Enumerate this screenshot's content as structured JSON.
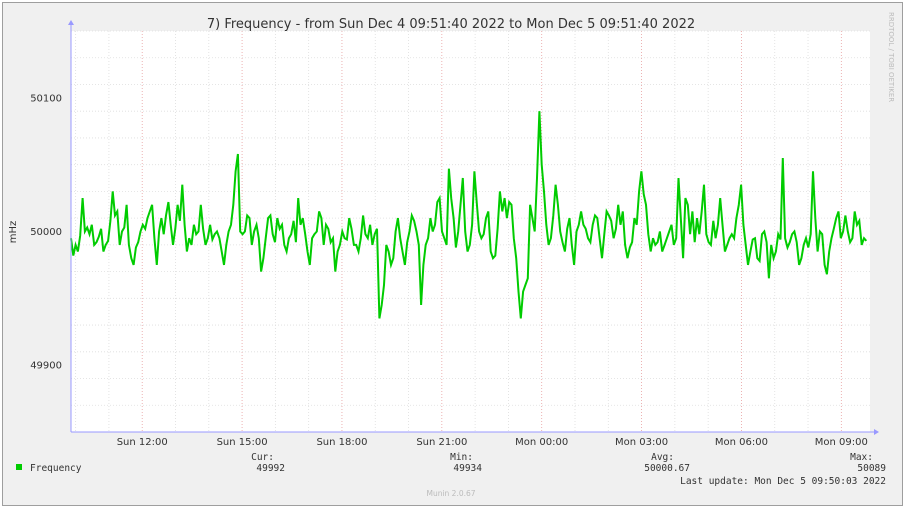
{
  "chart_data": {
    "type": "line",
    "title": "7) Frequency - from Sun Dec  4 09:51:40 2022 to Mon Dec  5 09:51:40 2022",
    "ylabel": "mHz",
    "xlabel": "",
    "side_label": "RRDTOOL / TOBI OETIKER",
    "footer": "Munin 2.0.67",
    "ylim": [
      49850,
      50150
    ],
    "y_ticks": [
      49900,
      50000,
      50100
    ],
    "x_ticks": [
      "Sun 12:00",
      "Sun 15:00",
      "Sun 18:00",
      "Sun 21:00",
      "Mon 00:00",
      "Mon 03:00",
      "Mon 06:00",
      "Mon 09:00"
    ],
    "x_range_hours": [
      "Sun Dec 4 09:51:40",
      "Mon Dec 5 09:51:40"
    ],
    "grid": true,
    "legend_position": "bottom-left",
    "colors": {
      "series": "#00cc00",
      "major_grid": "#e8a0a0",
      "minor_grid": "#dddddd",
      "axis": "#9999ff",
      "background": "#f0f0f0"
    },
    "series": [
      {
        "name": "Frequency",
        "start_hour": 9.86,
        "end_hour": 33.75,
        "values": [
          49995,
          49982,
          49990,
          49985,
          49997,
          50025,
          50000,
          50003,
          49998,
          50005,
          49990,
          49992,
          49996,
          50002,
          49985,
          49990,
          49993,
          50008,
          50030,
          50012,
          50015,
          49990,
          50000,
          50003,
          50020,
          49990,
          49980,
          49975,
          49988,
          49992,
          50000,
          50005,
          50002,
          50010,
          50015,
          50020,
          49995,
          49975,
          50000,
          50010,
          49998,
          50012,
          50022,
          50005,
          49990,
          50002,
          50020,
          50008,
          50035,
          50005,
          49985,
          49995,
          49990,
          50005,
          49998,
          50000,
          50020,
          50002,
          49990,
          49995,
          50005,
          49994,
          49998,
          50000,
          49995,
          49985,
          49975,
          49990,
          50000,
          50005,
          50020,
          50045,
          50058,
          50000,
          49998,
          50000,
          50012,
          50010,
          49990,
          50000,
          50005,
          49995,
          49970,
          49980,
          49995,
          50010,
          50012,
          49998,
          49992,
          50010,
          50002,
          50005,
          49990,
          49985,
          49995,
          49998,
          50008,
          49992,
          50025,
          50005,
          50010,
          49998,
          49985,
          49975,
          49995,
          49998,
          50000,
          50015,
          50010,
          49990,
          50005,
          50002,
          49992,
          49995,
          49970,
          49985,
          49990,
          50000,
          49995,
          49994,
          50010,
          50002,
          49990,
          49990,
          49985,
          49995,
          50012,
          49998,
          49995,
          50005,
          49990,
          49998,
          50002,
          49935,
          49945,
          49960,
          49990,
          49985,
          49975,
          49980,
          50000,
          50010,
          49995,
          49985,
          49975,
          49992,
          50000,
          50012,
          50008,
          50000,
          49990,
          49945,
          49975,
          49990,
          49995,
          50010,
          50000,
          50005,
          50022,
          50025,
          50000,
          49995,
          49990,
          50047,
          50025,
          50010,
          49988,
          50000,
          50020,
          50040,
          50000,
          49985,
          49990,
          50005,
          50045,
          50022,
          50000,
          49995,
          49998,
          50010,
          50015,
          49985,
          49980,
          49982,
          50002,
          50030,
          50015,
          50025,
          50010,
          50022,
          50020,
          49995,
          49980,
          49955,
          49935,
          49955,
          49960,
          49965,
          50020,
          50010,
          50000,
          50040,
          50090,
          50050,
          50030,
          50005,
          49990,
          49995,
          50012,
          50035,
          50020,
          50000,
          49992,
          49985,
          50002,
          50010,
          49990,
          49975,
          50000,
          50005,
          50015,
          50005,
          50002,
          49995,
          49992,
          50005,
          50012,
          50010,
          49995,
          49980,
          49998,
          50015,
          50012,
          50008,
          49995,
          50002,
          50020,
          50005,
          50015,
          49990,
          49980,
          49988,
          49992,
          50010,
          50005,
          50030,
          50045,
          50028,
          50020,
          49998,
          49985,
          49995,
          49990,
          49992,
          50000,
          49985,
          49990,
          49995,
          50000,
          50005,
          49990,
          49995,
          50040,
          50010,
          49980,
          50025,
          50020,
          49998,
          50015,
          49992,
          50010,
          49998,
          50015,
          50035,
          49998,
          49992,
          49990,
          50008,
          49995,
          50005,
          50025,
          50005,
          49985,
          49990,
          49995,
          49998,
          49995,
          50010,
          50020,
          50035,
          50005,
          49990,
          49975,
          49985,
          49994,
          49995,
          49980,
          49978,
          49998,
          50000,
          49992,
          49965,
          49990,
          49980,
          49985,
          49998,
          49994,
          50055,
          49995,
          49988,
          49992,
          49998,
          50000,
          49992,
          49975,
          49980,
          49990,
          49995,
          49988,
          49998,
          50045,
          50010,
          49985,
          50000,
          49998,
          49975,
          49968,
          49985,
          49995,
          50002,
          50010,
          50015,
          49995,
          50000,
          50012,
          50000,
          49992,
          49995,
          50015,
          50005,
          50008,
          49990,
          49995,
          49993
        ]
      }
    ],
    "legend": {
      "entries": [
        {
          "name": "Frequency",
          "color": "#00cc00",
          "cur": "49992",
          "min": "49934",
          "avg": "50000.67",
          "max": "50089"
        }
      ],
      "headers": {
        "cur": "Cur:",
        "min": "Min:",
        "avg": "Avg:",
        "max": "Max:"
      },
      "last_update": "Last update: Mon Dec  5 09:50:03 2022"
    }
  }
}
